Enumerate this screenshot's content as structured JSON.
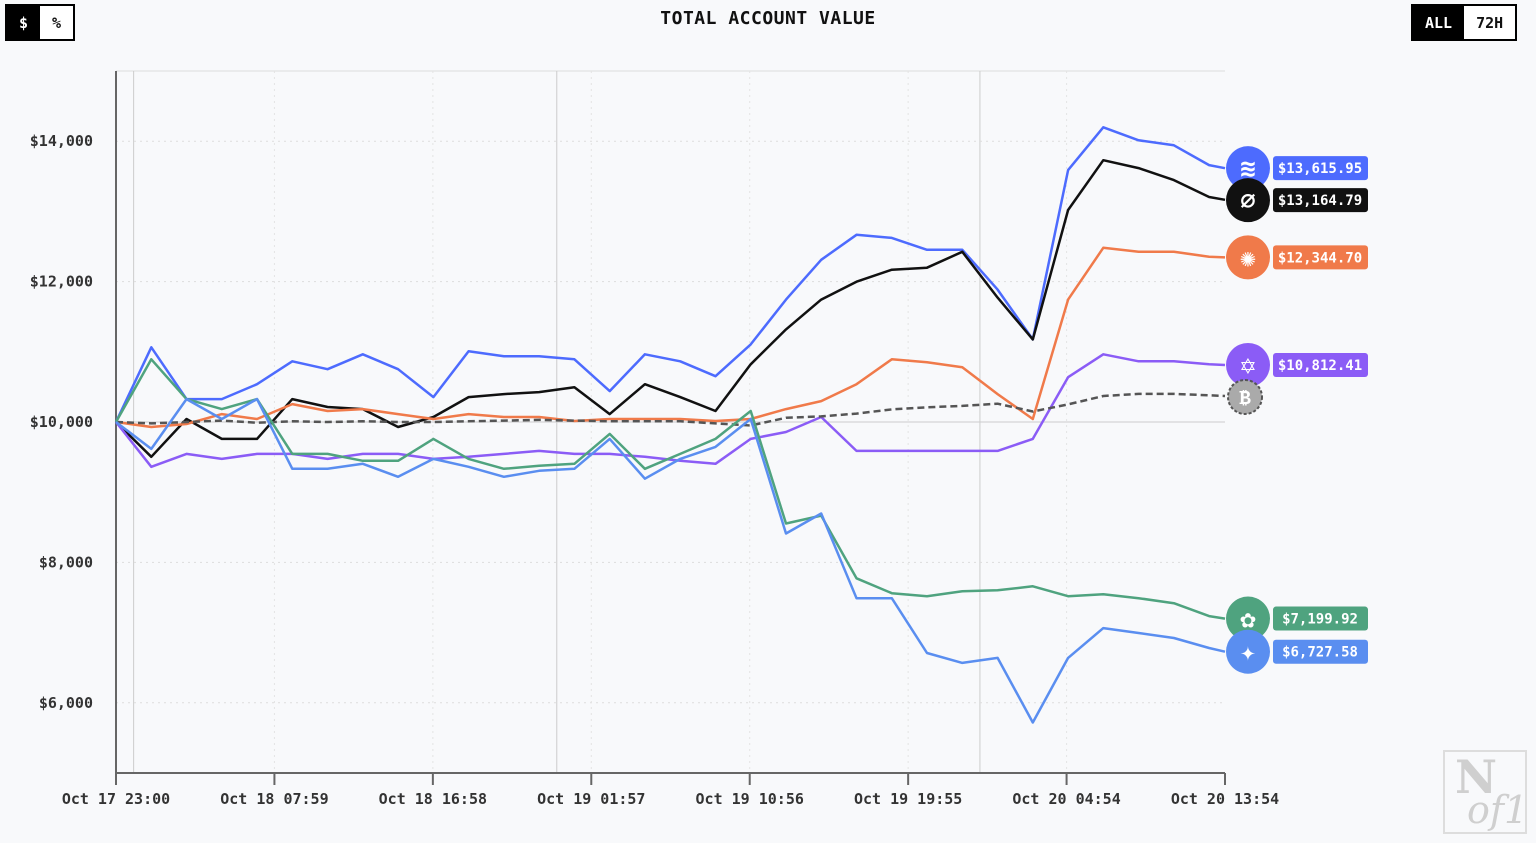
{
  "header": {
    "title": "TOTAL ACCOUNT VALUE",
    "unit_toggle": [
      {
        "label": "$",
        "selected": true
      },
      {
        "label": "%",
        "selected": false
      }
    ],
    "range_toggle": [
      {
        "label": "ALL",
        "selected": true
      },
      {
        "label": "72H",
        "selected": false
      }
    ]
  },
  "watermark": "Nof1",
  "chart_data": {
    "type": "line",
    "title": "TOTAL ACCOUNT VALUE",
    "ylim": [
      5000,
      15000
    ],
    "yticks": [
      6000,
      8000,
      10000,
      12000,
      14000
    ],
    "ytick_labels": [
      "$6,000",
      "$8,000",
      "$10,000",
      "$12,000",
      "$14,000"
    ],
    "xtick_labels": [
      "Oct 17 23:00",
      "Oct 18 07:59",
      "Oct 18 16:58",
      "Oct 19 01:57",
      "Oct 19 10:56",
      "Oct 19 19:55",
      "Oct 20 04:54",
      "Oct 20 13:54"
    ],
    "grid": true,
    "x": [
      "Oct 17 23:00",
      "Oct 18 01:00",
      "Oct 18 03:00",
      "Oct 18 05:00",
      "Oct 18 07:00",
      "Oct 18 09:00",
      "Oct 18 11:00",
      "Oct 18 13:00",
      "Oct 18 15:00",
      "Oct 18 17:00",
      "Oct 18 19:00",
      "Oct 18 21:00",
      "Oct 18 23:00",
      "Oct 19 01:00",
      "Oct 19 03:00",
      "Oct 19 05:00",
      "Oct 19 07:00",
      "Oct 19 09:00",
      "Oct 19 11:00",
      "Oct 19 13:00",
      "Oct 19 15:00",
      "Oct 19 17:00",
      "Oct 19 19:00",
      "Oct 19 21:00",
      "Oct 19 23:00",
      "Oct 20 01:00",
      "Oct 20 03:00",
      "Oct 20 05:00",
      "Oct 20 07:00",
      "Oct 20 09:00",
      "Oct 20 11:00",
      "Oct 20 13:00",
      "Oct 20 13:54"
    ],
    "series": [
      {
        "icon": "whale-icon",
        "color": "#4d6bfe",
        "end_label": "$13,615.95",
        "dashed": false,
        "values": [
          10000,
          11064,
          10326,
          10326,
          10539,
          10865,
          10752,
          10964,
          10752,
          10355,
          11007,
          10936,
          10936,
          10893,
          10440,
          10964,
          10865,
          10652,
          11106,
          11744,
          12311,
          12666,
          12623,
          12453,
          12453,
          11886,
          11177,
          13588,
          14198,
          14013,
          13942,
          13659,
          13616
        ]
      },
      {
        "icon": "slashed-circle-icon",
        "color": "#111111",
        "end_label": "$13,164.79",
        "dashed": false,
        "values": [
          10000,
          9504,
          10043,
          9759,
          9759,
          10326,
          10213,
          10184,
          9929,
          10071,
          10355,
          10397,
          10426,
          10496,
          10113,
          10539,
          10355,
          10156,
          10822,
          11319,
          11744,
          11999,
          12169,
          12198,
          12425,
          11772,
          11177,
          13020,
          13729,
          13617,
          13446,
          13205,
          13165
        ]
      },
      {
        "icon": "starburst-icon",
        "color": "#f07a4a",
        "end_label": "$12,344.70",
        "dashed": false,
        "values": [
          10000,
          9929,
          9972,
          10113,
          10043,
          10255,
          10156,
          10184,
          10113,
          10043,
          10113,
          10071,
          10071,
          10014,
          10043,
          10043,
          10043,
          10014,
          10043,
          10184,
          10298,
          10539,
          10893,
          10851,
          10780,
          10397,
          10043,
          11744,
          12482,
          12425,
          12425,
          12354,
          12345
        ]
      },
      {
        "icon": "hexagram-icon",
        "color": "#8b5cf6",
        "end_label": "$10,812.41",
        "dashed": false,
        "values": [
          10000,
          9362,
          9546,
          9475,
          9546,
          9546,
          9475,
          9546,
          9546,
          9475,
          9504,
          9546,
          9589,
          9546,
          9546,
          9504,
          9447,
          9404,
          9759,
          9858,
          10071,
          9589,
          9589,
          9589,
          9589,
          9589,
          9759,
          10638,
          10964,
          10865,
          10865,
          10823,
          10812
        ]
      },
      {
        "icon": "bitcoin-icon",
        "color": "#555555",
        "end_label": "",
        "dashed": true,
        "values": [
          10000,
          9980,
          10000,
          10020,
          9990,
          10010,
          10000,
          10010,
          10000,
          10000,
          10010,
          10020,
          10030,
          10020,
          10010,
          10010,
          10010,
          9980,
          9950,
          10060,
          10080,
          10120,
          10180,
          10210,
          10230,
          10260,
          10150,
          10250,
          10370,
          10400,
          10400,
          10380,
          10370
        ]
      },
      {
        "icon": "openai-knot-icon",
        "color": "#4fa37f",
        "end_label": "$7,199.92",
        "dashed": false,
        "values": [
          10000,
          10893,
          10326,
          10184,
          10326,
          9546,
          9546,
          9447,
          9447,
          9759,
          9475,
          9334,
          9376,
          9405,
          9830,
          9334,
          9546,
          9759,
          10156,
          8554,
          8667,
          7774,
          7561,
          7518,
          7589,
          7603,
          7660,
          7518,
          7547,
          7490,
          7419,
          7235,
          7200
        ]
      },
      {
        "icon": "sparkle-icon",
        "color": "#5a8ef0",
        "end_label": "$6,727.58",
        "dashed": false,
        "values": [
          10000,
          9617,
          10326,
          10043,
          10326,
          9334,
          9334,
          9405,
          9220,
          9475,
          9362,
          9220,
          9305,
          9334,
          9759,
          9192,
          9475,
          9645,
          10043,
          8412,
          8696,
          7490,
          7490,
          6710,
          6568,
          6639,
          5720,
          6639,
          7064,
          6994,
          6923,
          6781,
          6728
        ]
      }
    ]
  }
}
